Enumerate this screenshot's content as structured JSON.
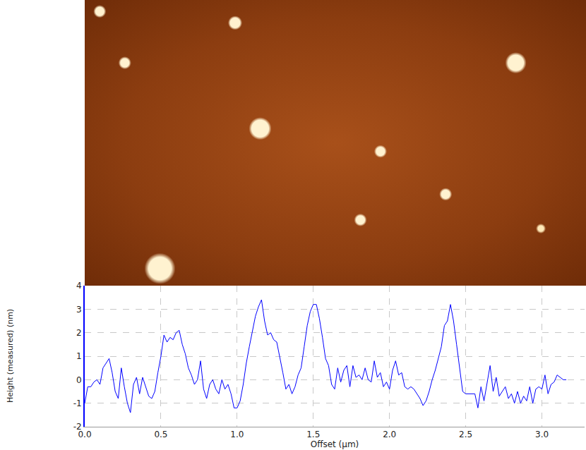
{
  "chart_data": {
    "type": "line",
    "xlabel": "Offset (µm)",
    "ylabel": "Height (measured) (nm)",
    "color": "#0000ff",
    "grid": true,
    "xlim": [
      0,
      3.28
    ],
    "ylim": [
      -2,
      4
    ],
    "xticks": [
      {
        "value": 0,
        "label": "0.0"
      },
      {
        "value": 0.5,
        "label": "0.5"
      },
      {
        "value": 1,
        "label": "1.0"
      },
      {
        "value": 1.5,
        "label": "1.5"
      },
      {
        "value": 2,
        "label": "2.0"
      },
      {
        "value": 2.5,
        "label": "2.5"
      },
      {
        "value": 3,
        "label": "3.0"
      }
    ],
    "yticks": [
      -2,
      -1,
      0,
      1,
      2,
      3,
      4
    ],
    "x": [
      0.0,
      0.02,
      0.04,
      0.06,
      0.08,
      0.1,
      0.12,
      0.14,
      0.16,
      0.18,
      0.2,
      0.22,
      0.24,
      0.26,
      0.28,
      0.3,
      0.32,
      0.34,
      0.36,
      0.38,
      0.4,
      0.42,
      0.44,
      0.46,
      0.48,
      0.5,
      0.52,
      0.54,
      0.56,
      0.58,
      0.6,
      0.62,
      0.64,
      0.66,
      0.68,
      0.7,
      0.72,
      0.74,
      0.76,
      0.78,
      0.8,
      0.82,
      0.84,
      0.86,
      0.88,
      0.9,
      0.92,
      0.94,
      0.96,
      0.98,
      1.0,
      1.02,
      1.04,
      1.06,
      1.08,
      1.1,
      1.12,
      1.14,
      1.16,
      1.18,
      1.2,
      1.22,
      1.24,
      1.26,
      1.28,
      1.3,
      1.32,
      1.34,
      1.36,
      1.38,
      1.4,
      1.42,
      1.44,
      1.46,
      1.48,
      1.5,
      1.52,
      1.54,
      1.56,
      1.58,
      1.6,
      1.62,
      1.64,
      1.66,
      1.68,
      1.7,
      1.72,
      1.74,
      1.76,
      1.78,
      1.8,
      1.82,
      1.84,
      1.86,
      1.88,
      1.9,
      1.92,
      1.94,
      1.96,
      1.98,
      2.0,
      2.02,
      2.04,
      2.06,
      2.08,
      2.1,
      2.12,
      2.14,
      2.16,
      2.18,
      2.2,
      2.22,
      2.24,
      2.26,
      2.28,
      2.3,
      2.32,
      2.34,
      2.36,
      2.38,
      2.4,
      2.42,
      2.44,
      2.46,
      2.48,
      2.5,
      2.52,
      2.54,
      2.56,
      2.58,
      2.6,
      2.62,
      2.64,
      2.66,
      2.68,
      2.7,
      2.72,
      2.74,
      2.76,
      2.78,
      2.8,
      2.82,
      2.84,
      2.86,
      2.88,
      2.9,
      2.92,
      2.94,
      2.96,
      2.98,
      3.0,
      3.02,
      3.04,
      3.06,
      3.08,
      3.1,
      3.12,
      3.14,
      3.16
    ],
    "values": [
      -1.0,
      -0.3,
      -0.3,
      -0.1,
      0.0,
      -0.2,
      0.5,
      0.7,
      0.9,
      0.3,
      -0.5,
      -0.8,
      0.5,
      -0.3,
      -1.0,
      -1.4,
      -0.2,
      0.1,
      -0.6,
      0.1,
      -0.3,
      -0.7,
      -0.8,
      -0.5,
      0.3,
      1.0,
      1.9,
      1.6,
      1.8,
      1.7,
      2.0,
      2.1,
      1.5,
      1.1,
      0.5,
      0.2,
      -0.2,
      0.0,
      0.8,
      -0.4,
      -0.8,
      -0.2,
      0.0,
      -0.4,
      -0.6,
      0.0,
      -0.4,
      -0.2,
      -0.6,
      -1.2,
      -1.2,
      -0.9,
      -0.2,
      0.7,
      1.4,
      2.1,
      2.7,
      3.1,
      3.4,
      2.5,
      1.9,
      2.0,
      1.7,
      1.6,
      1.0,
      0.3,
      -0.4,
      -0.2,
      -0.6,
      -0.3,
      0.2,
      0.5,
      1.4,
      2.3,
      2.9,
      3.2,
      3.2,
      2.6,
      1.8,
      0.9,
      0.6,
      -0.2,
      -0.4,
      0.5,
      -0.1,
      0.4,
      0.6,
      -0.3,
      0.6,
      0.1,
      0.2,
      0.0,
      0.5,
      0.0,
      -0.1,
      0.8,
      0.1,
      0.3,
      -0.3,
      -0.1,
      -0.4,
      0.4,
      0.8,
      0.2,
      0.3,
      -0.3,
      -0.4,
      -0.3,
      -0.4,
      -0.6,
      -0.8,
      -1.1,
      -0.9,
      -0.5,
      0.0,
      0.4,
      0.9,
      1.4,
      2.3,
      2.5,
      3.2,
      2.5,
      1.5,
      0.5,
      -0.5,
      -0.6,
      -0.6,
      -0.6,
      -0.6,
      -1.2,
      -0.3,
      -0.9,
      -0.1,
      0.6,
      -0.5,
      0.1,
      -0.7,
      -0.5,
      -0.3,
      -0.8,
      -0.6,
      -1.0,
      -0.5,
      -1.0,
      -0.7,
      -0.9,
      -0.3,
      -1.0,
      -0.4,
      -0.3,
      -0.4,
      0.2,
      -0.6,
      -0.2,
      -0.1,
      0.2,
      0.1,
      0.0,
      0.0
    ]
  }
}
